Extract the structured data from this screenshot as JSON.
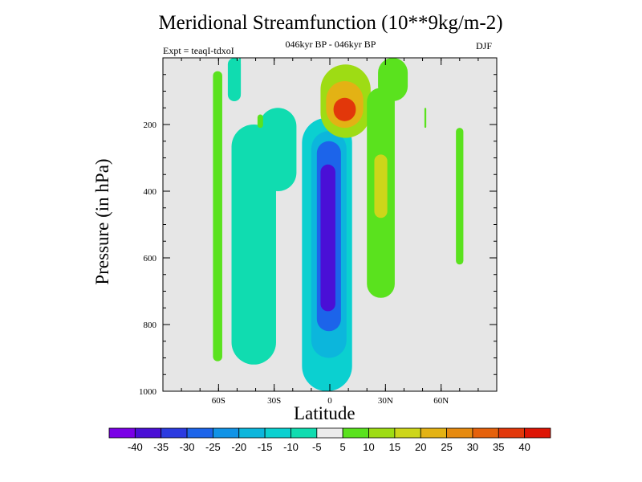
{
  "chart_data": {
    "type": "heatmap",
    "title": "Meridional Streamfunction (10**9kg/m-2)",
    "subtitle": "046kyr BP - 046kyr BP",
    "left_label": "Expt = teaqI-tdxoI",
    "right_label": "DJF",
    "xlabel": "Latitude",
    "ylabel": "Pressure (in hPa)",
    "xlim": [
      -90,
      90
    ],
    "ylim": [
      0,
      1000
    ],
    "y_inverted": true,
    "x_ticks": [
      {
        "value": -60,
        "label": "60S"
      },
      {
        "value": -30,
        "label": "30S"
      },
      {
        "value": 0,
        "label": "0"
      },
      {
        "value": 30,
        "label": "30N"
      },
      {
        "value": 60,
        "label": "60N"
      }
    ],
    "y_ticks": [
      {
        "value": 200,
        "label": "200"
      },
      {
        "value": 400,
        "label": "400"
      },
      {
        "value": 600,
        "label": "600"
      },
      {
        "value": 800,
        "label": "800"
      },
      {
        "value": 1000,
        "label": "1000"
      }
    ],
    "background_color": "#e6e6e6",
    "contour_levels": [
      -40,
      -35,
      -30,
      -25,
      -20,
      -15,
      -10,
      -5,
      5,
      10,
      15,
      20,
      25,
      30,
      35,
      40
    ],
    "colorbar_colors": [
      "#7a00e6",
      "#4a0fd6",
      "#2b3ae0",
      "#1c64ea",
      "#1193e6",
      "#0cb6dc",
      "#0bd0d0",
      "#10dcb0",
      "#ececec",
      "#5ae21e",
      "#9edc14",
      "#cdd61a",
      "#e3b214",
      "#e68a0f",
      "#e5610b",
      "#e2370a",
      "#dd1505"
    ],
    "regions": [
      {
        "name": "narrow-ridge-70s",
        "value": -6,
        "lat": [
          -49,
          -48
        ],
        "p": [
          0,
          110
        ]
      },
      {
        "name": "low-cell-60s",
        "value": 6,
        "lat": [
          -63,
          -58
        ],
        "p": [
          40,
          910
        ]
      },
      {
        "name": "upper-cell-55s",
        "value": -6,
        "lat": [
          -55,
          -48
        ],
        "p": [
          0,
          130
        ]
      },
      {
        "name": "band-45s",
        "value": -6,
        "lat": [
          -53,
          -29
        ],
        "p": [
          200,
          920
        ]
      },
      {
        "name": "upper-cell-30s",
        "value": -6,
        "lat": [
          -38,
          -18
        ],
        "p": [
          150,
          400
        ]
      },
      {
        "name": "small-blob-40s",
        "value": 6,
        "lat": [
          -39,
          -36
        ],
        "p": [
          170,
          210
        ]
      },
      {
        "name": "sh-hadley-outer",
        "value": -12,
        "lat": [
          -15,
          12
        ],
        "p": [
          180,
          1000
        ]
      },
      {
        "name": "sh-hadley-mid",
        "value": -20,
        "lat": [
          -10,
          9
        ],
        "p": [
          220,
          900
        ]
      },
      {
        "name": "sh-hadley-inner",
        "value": -28,
        "lat": [
          -7,
          6
        ],
        "p": [
          250,
          820
        ]
      },
      {
        "name": "sh-hadley-core",
        "value": -38,
        "lat": [
          -5,
          3
        ],
        "p": [
          320,
          760
        ]
      },
      {
        "name": "nh-upper-outer",
        "value": 12,
        "lat": [
          -5,
          22
        ],
        "p": [
          20,
          240
        ]
      },
      {
        "name": "nh-upper-mid",
        "value": 22,
        "lat": [
          -2,
          18
        ],
        "p": [
          70,
          210
        ]
      },
      {
        "name": "nh-upper-core",
        "value": 38,
        "lat": [
          2,
          14
        ],
        "p": [
          120,
          190
        ]
      },
      {
        "name": "nh-descending-band",
        "value": 8,
        "lat": [
          20,
          35
        ],
        "p": [
          90,
          720
        ]
      },
      {
        "name": "nh-descending-core",
        "value": 18,
        "lat": [
          24,
          31
        ],
        "p": [
          290,
          480
        ]
      },
      {
        "name": "upper-cell-30n",
        "value": 6,
        "lat": [
          26,
          42
        ],
        "p": [
          0,
          130
        ]
      },
      {
        "name": "streak-50n",
        "value": 6,
        "lat": [
          51,
          52
        ],
        "p": [
          150,
          210
        ]
      },
      {
        "name": "polar-cell-70n",
        "value": 7,
        "lat": [
          68,
          72
        ],
        "p": [
          210,
          620
        ]
      }
    ],
    "colorbar_labels": [
      "-40",
      "-35",
      "-30",
      "-25",
      "-20",
      "-15",
      "-10",
      "-5",
      "5",
      "10",
      "15",
      "20",
      "25",
      "30",
      "35",
      "40"
    ]
  }
}
